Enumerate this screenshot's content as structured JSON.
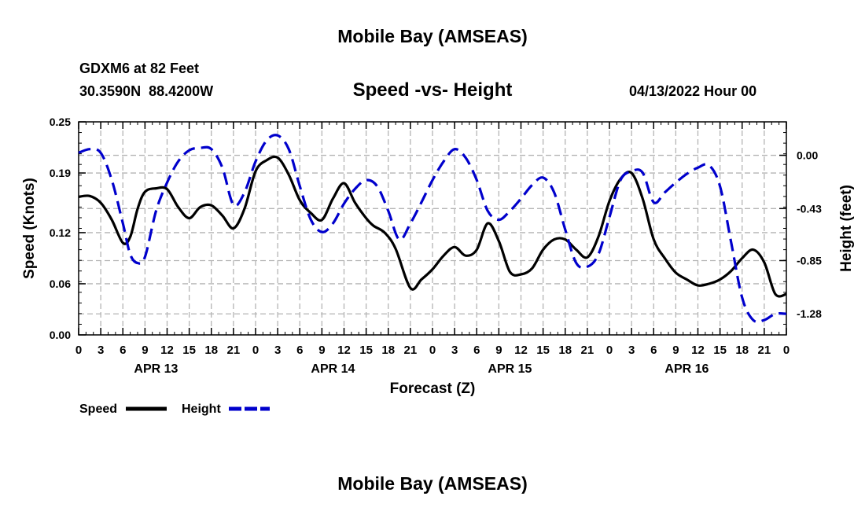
{
  "header": {
    "title": "Mobile Bay (AMSEAS)",
    "station": "GDXM6 at 82 Feet",
    "coords": "30.3590N  88.4200W",
    "chart_title": "Speed -vs- Height",
    "datetime": "04/13/2022 Hour 00"
  },
  "footer": {
    "title": "Mobile Bay (AMSEAS)"
  },
  "legend": {
    "speed_label": "Speed",
    "height_label": "Height"
  },
  "colors": {
    "speed": "#000000",
    "height": "#0000cc",
    "grid": "#b4b4b4"
  },
  "chart_data": {
    "type": "line",
    "title": "Speed -vs- Height",
    "xlabel": "Forecast (Z)",
    "ylabel": "Speed (Knots)",
    "y2label": "Height (feet)",
    "xlim": [
      0,
      96
    ],
    "ylim": [
      0,
      0.25
    ],
    "y2lim": [
      -1.45,
      0.27
    ],
    "xticks": [
      0,
      3,
      6,
      9,
      12,
      15,
      18,
      21,
      24,
      27,
      30,
      33,
      36,
      39,
      42,
      45,
      48,
      51,
      54,
      57,
      60,
      63,
      66,
      69,
      72,
      75,
      78,
      81,
      84,
      87,
      90,
      93,
      96
    ],
    "xtick_labels": [
      "0",
      "3",
      "6",
      "9",
      "12",
      "15",
      "18",
      "21",
      "0",
      "3",
      "6",
      "9",
      "12",
      "15",
      "18",
      "21",
      "0",
      "3",
      "6",
      "9",
      "12",
      "15",
      "18",
      "21",
      "0",
      "3",
      "6",
      "9",
      "12",
      "15",
      "18",
      "21",
      "0"
    ],
    "day_labels": [
      {
        "label": "APR 13",
        "at": 10.5
      },
      {
        "label": "APR 14",
        "at": 34.5
      },
      {
        "label": "APR 15",
        "at": 58.5
      },
      {
        "label": "APR 16",
        "at": 82.5
      }
    ],
    "yticks": [
      0.0,
      0.06,
      0.12,
      0.19,
      0.25
    ],
    "ytick_labels": [
      "0.00",
      "0.06",
      "0.12",
      "0.19",
      "0.25"
    ],
    "y2ticks": [
      0.0,
      -0.43,
      -0.85,
      -1.28
    ],
    "y2tick_labels": [
      "0.00",
      "-0.43",
      "-0.85",
      "-1.28"
    ],
    "series": [
      {
        "name": "Speed",
        "axis": "left",
        "style": "solid",
        "x": [
          0,
          1.5,
          3,
          4.5,
          6,
          7,
          8,
          9,
          10.5,
          12,
          13.5,
          15,
          16.5,
          18,
          19.5,
          21,
          22.5,
          24,
          25.5,
          27,
          28.5,
          30,
          31.5,
          33,
          34.5,
          36,
          37.5,
          39,
          40,
          41.5,
          43,
          45,
          46.5,
          48,
          49.5,
          51,
          52.5,
          54,
          55.5,
          57,
          58.5,
          60,
          61.5,
          63,
          64.5,
          66,
          67.5,
          69,
          70.5,
          72,
          73.5,
          75,
          76.5,
          78,
          79.5,
          81,
          82.5,
          84,
          85.5,
          87,
          88.5,
          90,
          91.5,
          93,
          94.5,
          96
        ],
        "y": [
          0.162,
          0.163,
          0.155,
          0.135,
          0.108,
          0.115,
          0.148,
          0.168,
          0.172,
          0.171,
          0.15,
          0.137,
          0.15,
          0.152,
          0.14,
          0.125,
          0.148,
          0.192,
          0.205,
          0.208,
          0.188,
          0.158,
          0.143,
          0.135,
          0.16,
          0.178,
          0.155,
          0.137,
          0.128,
          0.12,
          0.101,
          0.055,
          0.065,
          0.077,
          0.093,
          0.103,
          0.093,
          0.1,
          0.131,
          0.11,
          0.074,
          0.071,
          0.078,
          0.1,
          0.112,
          0.112,
          0.1,
          0.091,
          0.115,
          0.157,
          0.183,
          0.19,
          0.16,
          0.112,
          0.09,
          0.073,
          0.065,
          0.058,
          0.06,
          0.065,
          0.075,
          0.09,
          0.1,
          0.085,
          0.048,
          0.048
        ]
      },
      {
        "name": "Height",
        "axis": "right",
        "style": "dashed",
        "x": [
          0,
          1.5,
          3,
          4.5,
          6,
          7,
          8,
          9,
          10.5,
          12,
          13.5,
          15,
          16.5,
          18,
          19.5,
          21,
          22.5,
          24,
          25.5,
          27,
          28.5,
          30,
          31.5,
          33,
          34.5,
          36,
          37.5,
          39,
          40.5,
          42,
          43.5,
          45,
          46.5,
          48,
          49.5,
          51,
          52.5,
          54,
          55.5,
          57,
          58.5,
          60,
          61.5,
          63,
          64.5,
          66,
          67.5,
          69,
          70.5,
          72,
          73.5,
          75,
          76.5,
          78,
          79.5,
          81,
          82.5,
          84,
          85.5,
          87,
          88.5,
          90,
          91.5,
          93,
          94.5,
          96
        ],
        "y": [
          0.02,
          0.05,
          0.02,
          -0.2,
          -0.55,
          -0.8,
          -0.87,
          -0.82,
          -0.45,
          -0.22,
          -0.05,
          0.04,
          0.06,
          0.05,
          -0.1,
          -0.4,
          -0.3,
          -0.05,
          0.12,
          0.16,
          0.05,
          -0.25,
          -0.52,
          -0.62,
          -0.55,
          -0.39,
          -0.27,
          -0.2,
          -0.25,
          -0.45,
          -0.68,
          -0.55,
          -0.38,
          -0.2,
          -0.05,
          0.05,
          -0.02,
          -0.2,
          -0.45,
          -0.52,
          -0.45,
          -0.35,
          -0.24,
          -0.18,
          -0.3,
          -0.6,
          -0.87,
          -0.9,
          -0.8,
          -0.5,
          -0.2,
          -0.13,
          -0.14,
          -0.38,
          -0.3,
          -0.22,
          -0.15,
          -0.1,
          -0.08,
          -0.25,
          -0.7,
          -1.15,
          -1.33,
          -1.33,
          -1.28,
          -1.28
        ]
      }
    ],
    "grid": true,
    "legend_position": "bottom-left"
  }
}
